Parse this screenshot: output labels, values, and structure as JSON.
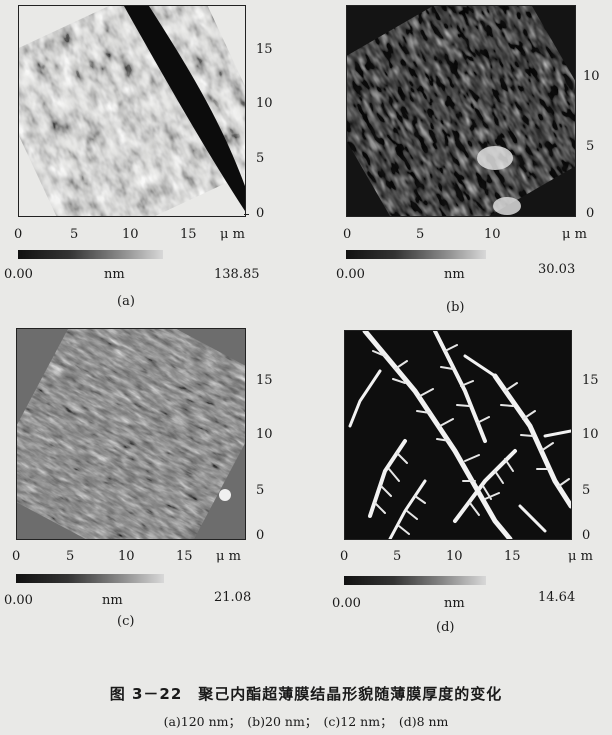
{
  "figure": {
    "title": "图 3－22　聚己内酯超薄膜结晶形貌随薄膜厚度的变化",
    "subcaption": "(a)120 nm；　(b)20 nm；　(c)12 nm；　(d)8 nm"
  },
  "panels": [
    {
      "label": "(a)",
      "x_ticks": [
        "0",
        "5",
        "10",
        "15"
      ],
      "x_unit": "μ m",
      "y_ticks": [
        "0",
        "5",
        "10",
        "15"
      ],
      "scale_min": "0.00",
      "scale_unit": "nm",
      "scale_max": "138.85"
    },
    {
      "label": "(b)",
      "x_ticks": [
        "0",
        "5",
        "10"
      ],
      "x_unit": "μ m",
      "y_ticks": [
        "0",
        "5",
        "10"
      ],
      "scale_min": "0.00",
      "scale_unit": "nm",
      "scale_max": "30.03"
    },
    {
      "label": "(c)",
      "x_ticks": [
        "0",
        "5",
        "10",
        "15"
      ],
      "x_unit": "μ m",
      "y_ticks": [
        "0",
        "5",
        "10",
        "15"
      ],
      "scale_min": "0.00",
      "scale_unit": "nm",
      "scale_max": "21.08"
    },
    {
      "label": "(d)",
      "x_ticks": [
        "0",
        "5",
        "10",
        "15"
      ],
      "x_unit": "μ m",
      "y_ticks": [
        "0",
        "5",
        "10",
        "15"
      ],
      "scale_min": "0.00",
      "scale_unit": "nm",
      "scale_max": "14.64"
    }
  ]
}
